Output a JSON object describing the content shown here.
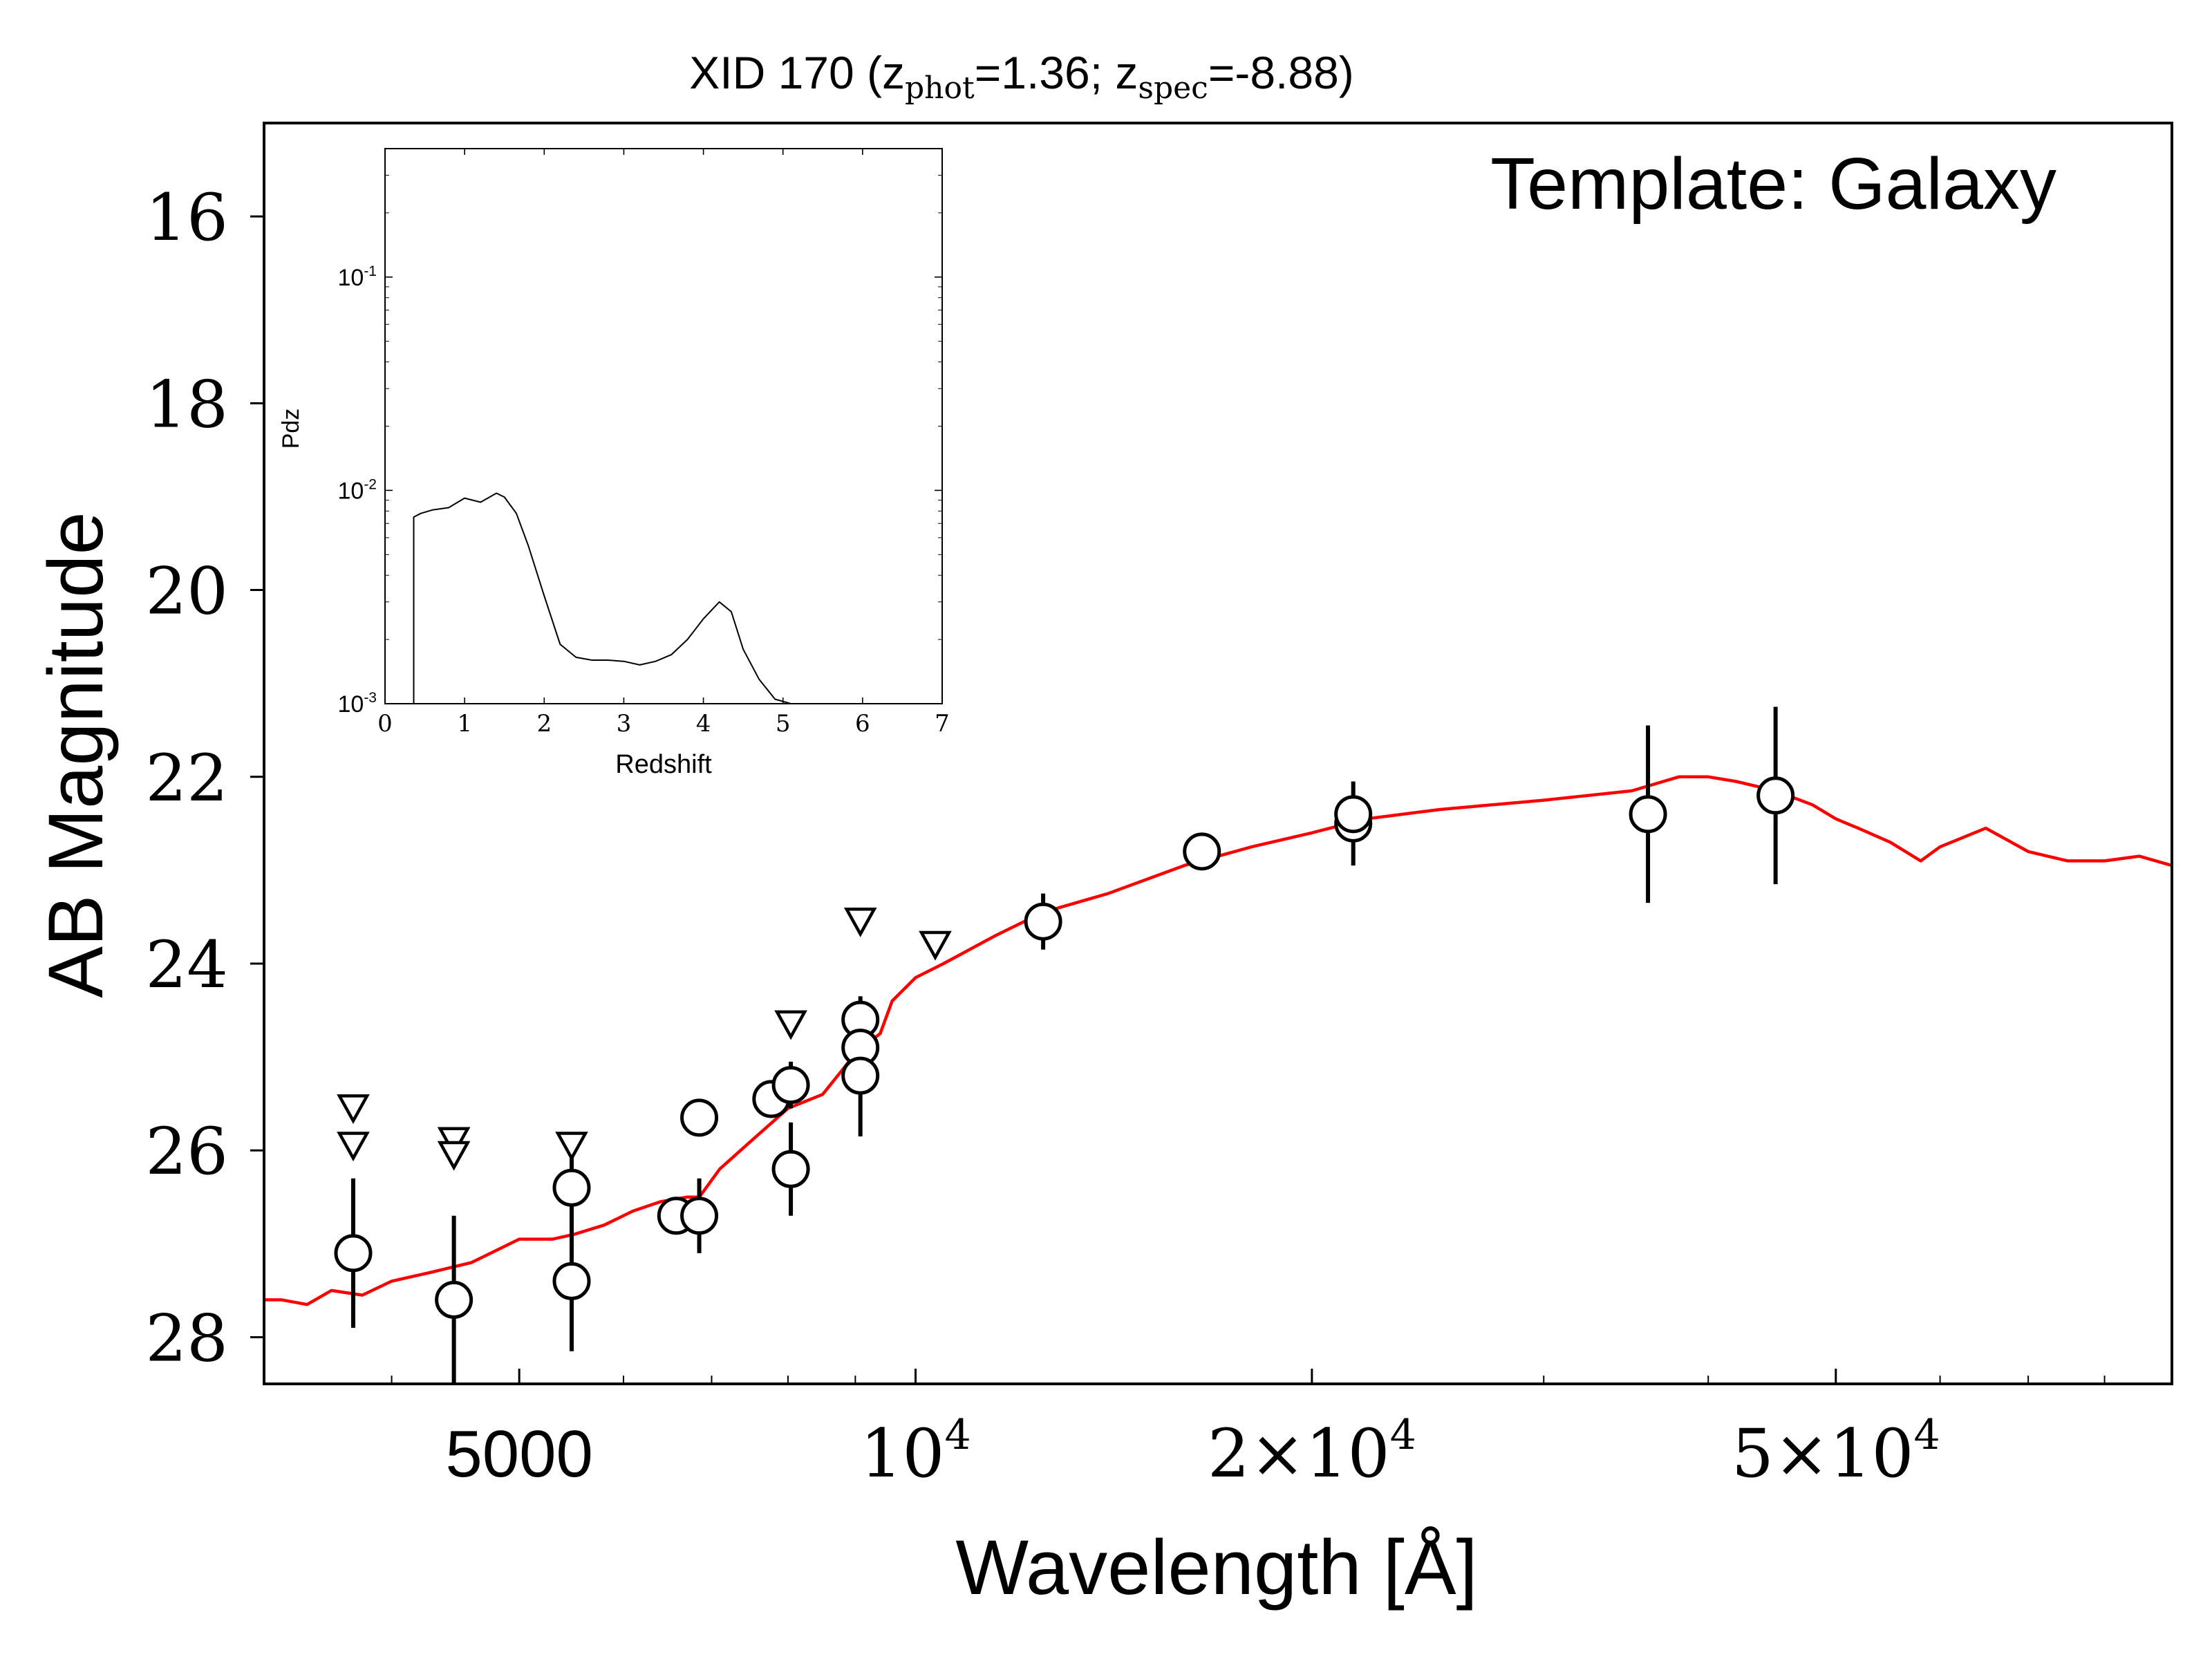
{
  "chart_data": {
    "type": "scatter",
    "title": "XID 170 (z_phot=1.36; z_spec=-8.88)",
    "title_parts": {
      "prefix": "XID 170 (z",
      "sub1": "phot",
      "mid": "=1.36; z",
      "sub2": "spec",
      "suffix": "=-8.88)"
    },
    "annotation": "Template: Galaxy",
    "xlabel": "Wavelength [Å]",
    "ylabel": "AB Magnitude",
    "x_scale": "log",
    "xlim": [
      3200,
      90000
    ],
    "ylim": [
      28.5,
      15
    ],
    "y_inverted": true,
    "x_ticks": [
      {
        "value": 5000,
        "label": "5000"
      },
      {
        "value": 10000,
        "label": "10^4"
      },
      {
        "value": 20000,
        "label": "2×10^4"
      },
      {
        "value": 50000,
        "label": "5×10^4"
      }
    ],
    "y_ticks": [
      16,
      18,
      20,
      22,
      24,
      26,
      28
    ],
    "detections": [
      {
        "x": 3740,
        "y": 27.1,
        "yerr": 0.8
      },
      {
        "x": 4460,
        "y": 27.6,
        "yerr": 0.9
      },
      {
        "x": 5480,
        "y": 26.4,
        "yerr": 0.5
      },
      {
        "x": 5480,
        "y": 27.4,
        "yerr": 0.75
      },
      {
        "x": 6580,
        "y": 26.7,
        "yerr": 0.15
      },
      {
        "x": 6850,
        "y": 25.65,
        "yerr": 0.15
      },
      {
        "x": 6850,
        "y": 26.7,
        "yerr": 0.4
      },
      {
        "x": 7770,
        "y": 25.45,
        "yerr": 0.15
      },
      {
        "x": 8040,
        "y": 25.3,
        "yerr": 0.25
      },
      {
        "x": 8040,
        "y": 26.2,
        "yerr": 0.5
      },
      {
        "x": 9080,
        "y": 24.6,
        "yerr": 0.25
      },
      {
        "x": 9080,
        "y": 24.9,
        "yerr": 0.25
      },
      {
        "x": 9080,
        "y": 25.2,
        "yerr": 0.65
      },
      {
        "x": 12500,
        "y": 23.55,
        "yerr": 0.3
      },
      {
        "x": 16500,
        "y": 22.8,
        "yerr": 0.1
      },
      {
        "x": 21500,
        "y": 22.5,
        "yerr": 0.45
      },
      {
        "x": 21500,
        "y": 22.4,
        "yerr": 0.2
      },
      {
        "x": 36000,
        "y": 22.4,
        "yerr": 0.95
      },
      {
        "x": 45000,
        "y": 22.2,
        "yerr": 0.95
      }
    ],
    "upper_limits": [
      {
        "x": 3740,
        "y": 25.55
      },
      {
        "x": 3740,
        "y": 25.95
      },
      {
        "x": 4460,
        "y": 25.9
      },
      {
        "x": 4460,
        "y": 26.05
      },
      {
        "x": 5480,
        "y": 25.95
      },
      {
        "x": 8040,
        "y": 24.65
      },
      {
        "x": 9080,
        "y": 23.55
      },
      {
        "x": 10350,
        "y": 23.8
      }
    ],
    "template_color": "#ff0000",
    "template": {
      "x": [
        3200,
        3300,
        3450,
        3600,
        3800,
        4000,
        4300,
        4600,
        5000,
        5300,
        5500,
        5800,
        6100,
        6400,
        6700,
        6850,
        7100,
        7500,
        8000,
        8500,
        8900,
        9200,
        9400,
        9600,
        10000,
        10500,
        11500,
        12500,
        14000,
        16000,
        18000,
        20000,
        22000,
        25000,
        30000,
        35000,
        38000,
        40000,
        42000,
        45000,
        48000,
        50000,
        52000,
        55000,
        58000,
        60000,
        65000,
        70000,
        75000,
        80000,
        85000,
        90000
      ],
      "y": [
        27.6,
        27.6,
        27.65,
        27.5,
        27.55,
        27.4,
        27.3,
        27.2,
        26.95,
        26.95,
        26.9,
        26.8,
        26.65,
        26.55,
        26.5,
        26.5,
        26.2,
        25.9,
        25.55,
        25.4,
        25.05,
        24.85,
        24.75,
        24.4,
        24.15,
        24.0,
        23.7,
        23.45,
        23.25,
        22.95,
        22.75,
        22.6,
        22.45,
        22.35,
        22.25,
        22.15,
        22.0,
        22.0,
        22.05,
        22.15,
        22.3,
        22.45,
        22.55,
        22.7,
        22.9,
        22.75,
        22.55,
        22.8,
        22.9,
        22.9,
        22.85,
        22.95
      ]
    },
    "inset": {
      "type": "line",
      "xlabel": "Redshift",
      "ylabel": "Pdz",
      "xlim": [
        0,
        7
      ],
      "ylim": [
        0.001,
        0.4
      ],
      "y_scale": "log",
      "x_ticks": [
        0,
        1,
        2,
        3,
        4,
        5,
        6,
        7
      ],
      "y_ticks": [
        {
          "value": 0.001,
          "label": "10^-3"
        },
        {
          "value": 0.01,
          "label": "10^-2"
        },
        {
          "value": 0.1,
          "label": "10^-1"
        }
      ],
      "series": [
        {
          "x": [
            0.36,
            0.36,
            0.45,
            0.6,
            0.8,
            1.0,
            1.2,
            1.4,
            1.5,
            1.65,
            1.8,
            2.0,
            2.2,
            2.4,
            2.6,
            2.8,
            3.0,
            3.2,
            3.4,
            3.6,
            3.8,
            4.0,
            4.2,
            4.35,
            4.5,
            4.7,
            4.9,
            5.1,
            5.3
          ],
          "y": [
            0.001,
            0.0075,
            0.0078,
            0.0081,
            0.0083,
            0.0092,
            0.0088,
            0.0097,
            0.0093,
            0.0078,
            0.0055,
            0.0032,
            0.0019,
            0.00165,
            0.0016,
            0.0016,
            0.00158,
            0.00152,
            0.00158,
            0.0017,
            0.002,
            0.0025,
            0.003,
            0.0027,
            0.0018,
            0.0013,
            0.00105,
            0.001,
            0.00095
          ]
        }
      ]
    }
  }
}
